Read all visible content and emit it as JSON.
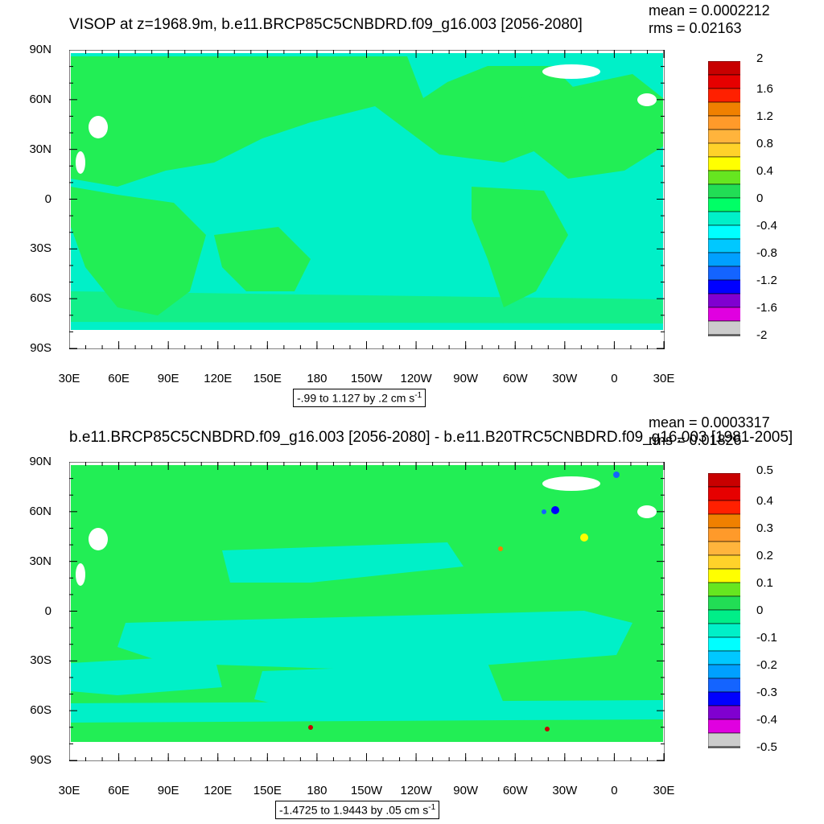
{
  "panels": [
    {
      "title": "VISOP at z=1968.9m, b.e11.BRCP85C5CNBDRD.f09_g16.003 [2056-2080]",
      "mean": "mean = 0.0002212",
      "rms": "rms = 0.02163",
      "range_text": "-.99 to 1.127 by .2 cm s",
      "range_sup": "-1",
      "colorbar_labels": [
        "2",
        "1.6",
        "1.2",
        "0.8",
        "0.4",
        "0",
        "-0.4",
        "-0.8",
        "-1.2",
        "-1.6",
        "-2"
      ],
      "colorbar_colors": [
        "#c80000",
        "#e60000",
        "#ff2000",
        "#f08000",
        "#ff9a2a",
        "#ffb43c",
        "#ffd22a",
        "#ffff00",
        "#66e620",
        "#22dd55",
        "#00ff66",
        "#00f0c8",
        "#00ffff",
        "#00c8ff",
        "#00a0ff",
        "#1464ff",
        "#0000ff",
        "#8000d0",
        "#e000e0",
        "#cccccc",
        "#777777"
      ]
    },
    {
      "title": "b.e11.BRCP85C5CNBDRD.f09_g16.003 [2056-2080] - b.e11.B20TRC5CNBDRD.f09_g16.003 [1981-2005]",
      "mean": "mean = 0.0003317",
      "rms": "rms = 0.01826",
      "range_text": "-1.4725 to 1.9443 by .05 cm s",
      "range_sup": "-1",
      "colorbar_labels": [
        "0.5",
        "0.4",
        "0.3",
        "0.2",
        "0.1",
        "0",
        "-0.1",
        "-0.2",
        "-0.3",
        "-0.4",
        "-0.5"
      ],
      "colorbar_colors": [
        "#c80000",
        "#e60000",
        "#ff2000",
        "#f08000",
        "#ff9a2a",
        "#ffb43c",
        "#ffd22a",
        "#ffff00",
        "#66e620",
        "#22dd55",
        "#00ee88",
        "#00f0c8",
        "#00ffff",
        "#00c8ff",
        "#00a0ff",
        "#1464ff",
        "#0000ff",
        "#8000d0",
        "#e000e0",
        "#cccccc",
        "#777777"
      ]
    }
  ],
  "lat_labels": [
    "90N",
    "60N",
    "30N",
    "0",
    "30S",
    "60S",
    "90S"
  ],
  "lon_labels": [
    "30E",
    "60E",
    "90E",
    "120E",
    "150E",
    "180",
    "150W",
    "120W",
    "90W",
    "60W",
    "30W",
    "0",
    "30E"
  ],
  "colors": {
    "land_zero": "#22ee55",
    "ocean_neg": "#00f0c8",
    "missing": "#ffffff"
  }
}
